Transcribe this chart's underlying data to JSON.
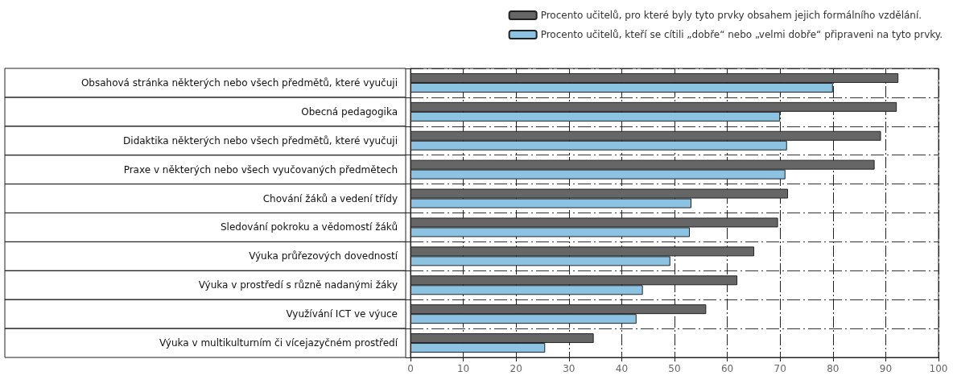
{
  "chart_data": {
    "type": "bar",
    "orientation": "horizontal",
    "categories": [
      "Obsahová stránka některých nebo všech předmětů, které vyučuji",
      "Obecná pedagogika",
      "Didaktika některých nebo všech předmětů, které vyučuji",
      "Praxe v některých nebo všech vyučovaných předmětech",
      "Chování žáků a vedení třídy",
      "Sledování pokroku a vědomostí žáků",
      "Výuka průřezových dovedností",
      "Výuka v prostředí s různě nadanými žáky",
      "Využívání ICT ve výuce",
      "Výuka v multikulturním či vícejazyčném prostředí"
    ],
    "series": [
      {
        "name": "Procento učitelů, pro které byly tyto prvky obsahem jejich formálního vzdělání.",
        "color": "#666666",
        "values": [
          92.4,
          92.1,
          89.1,
          87.9,
          71.5,
          69.6,
          65.1,
          61.9,
          56.0,
          34.7
        ]
      },
      {
        "name": "Procento učitelů, kteří se cítili „dobře“ nebo „velmi dobře“ připraveni na tyto prvky.",
        "color": "#8cc3e3",
        "values": [
          80.0,
          70.0,
          71.3,
          71.0,
          53.2,
          52.9,
          49.2,
          44.0,
          42.8,
          25.5
        ]
      }
    ],
    "xlim": [
      0,
      100
    ],
    "xticks": [
      0,
      10,
      20,
      30,
      40,
      50,
      60,
      70,
      80,
      90,
      100
    ],
    "grid": true,
    "legend": "top right"
  }
}
